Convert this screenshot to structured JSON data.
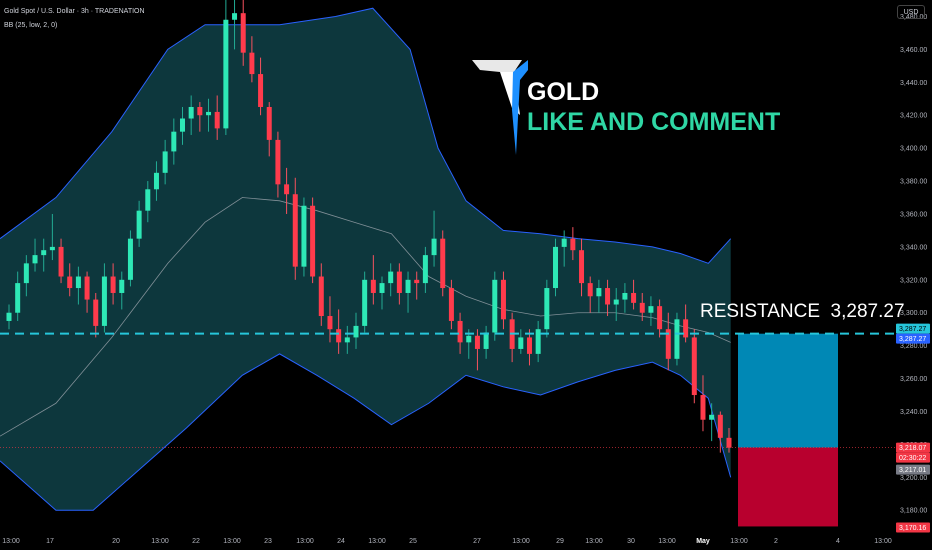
{
  "header": {
    "symbol_line": "Gold Spot / U.S. Dollar · 3h · TRADENATION",
    "indicator_line": "BB (25, low, 2, 0)"
  },
  "currency_button": "USD",
  "branding": {
    "title": "GOLD",
    "subtitle": "LIKE AND COMMENT",
    "accent_color": "#2fd7a5",
    "title_color": "#ffffff"
  },
  "annotation": {
    "text": "RESISTANCE  3,287.27",
    "line_color": "#26c6da"
  },
  "price_labels": {
    "resistance_top": "3,287.27",
    "resistance_bottom": "3,287.27",
    "current_price": "3,218.07",
    "countdown": "02:30:22",
    "gray_price": "3,217.01",
    "stop_price": "3,170.16"
  },
  "chart_data": {
    "type": "candlestick",
    "y_axis": {
      "ticks": [
        "3,180.00",
        "3,200.00",
        "3,220.00",
        "3,240.00",
        "3,260.00",
        "3,280.00",
        "3,300.00",
        "3,320.00",
        "3,340.00",
        "3,360.00",
        "3,380.00",
        "3,400.00",
        "3,420.00",
        "3,440.00",
        "3,460.00",
        "3,480.00"
      ],
      "ylim": [
        3168,
        3490
      ]
    },
    "x_axis": {
      "ticks": [
        "13:00",
        "17",
        "20",
        "13:00",
        "22",
        "13:00",
        "23",
        "13:00",
        "24",
        "13:00",
        "25",
        "27",
        "13:00",
        "29",
        "13:00",
        "30",
        "13:00",
        "May",
        "13:00",
        "2",
        "4",
        "13:00"
      ]
    },
    "candles": [
      [
        3295,
        3305,
        3290,
        3300
      ],
      [
        3300,
        3325,
        3295,
        3318
      ],
      [
        3318,
        3335,
        3310,
        3330
      ],
      [
        3330,
        3345,
        3325,
        3335
      ],
      [
        3335,
        3345,
        3325,
        3338
      ],
      [
        3338,
        3360,
        3332,
        3340
      ],
      [
        3340,
        3345,
        3318,
        3322
      ],
      [
        3322,
        3330,
        3310,
        3315
      ],
      [
        3315,
        3328,
        3305,
        3322
      ],
      [
        3322,
        3325,
        3300,
        3308
      ],
      [
        3308,
        3312,
        3285,
        3292
      ],
      [
        3292,
        3330,
        3288,
        3322
      ],
      [
        3322,
        3330,
        3305,
        3312
      ],
      [
        3312,
        3325,
        3302,
        3320
      ],
      [
        3320,
        3350,
        3316,
        3345
      ],
      [
        3345,
        3368,
        3340,
        3362
      ],
      [
        3362,
        3380,
        3355,
        3375
      ],
      [
        3375,
        3392,
        3368,
        3385
      ],
      [
        3385,
        3405,
        3378,
        3398
      ],
      [
        3398,
        3418,
        3390,
        3410
      ],
      [
        3410,
        3425,
        3402,
        3418
      ],
      [
        3418,
        3432,
        3408,
        3425
      ],
      [
        3425,
        3428,
        3410,
        3420
      ],
      [
        3420,
        3430,
        3410,
        3422
      ],
      [
        3422,
        3432,
        3405,
        3412
      ],
      [
        3412,
        3490,
        3408,
        3478
      ],
      [
        3478,
        3490,
        3460,
        3482
      ],
      [
        3482,
        3490,
        3450,
        3458
      ],
      [
        3458,
        3468,
        3440,
        3445
      ],
      [
        3445,
        3455,
        3420,
        3425
      ],
      [
        3425,
        3428,
        3395,
        3405
      ],
      [
        3405,
        3410,
        3370,
        3378
      ],
      [
        3378,
        3388,
        3360,
        3372
      ],
      [
        3372,
        3382,
        3320,
        3328
      ],
      [
        3328,
        3370,
        3322,
        3365
      ],
      [
        3365,
        3370,
        3318,
        3322
      ],
      [
        3322,
        3330,
        3292,
        3298
      ],
      [
        3298,
        3310,
        3282,
        3290
      ],
      [
        3290,
        3302,
        3275,
        3282
      ],
      [
        3282,
        3292,
        3275,
        3285
      ],
      [
        3285,
        3300,
        3278,
        3292
      ],
      [
        3292,
        3325,
        3288,
        3320
      ],
      [
        3320,
        3335,
        3305,
        3312
      ],
      [
        3312,
        3322,
        3302,
        3318
      ],
      [
        3318,
        3330,
        3310,
        3325
      ],
      [
        3325,
        3330,
        3305,
        3312
      ],
      [
        3312,
        3325,
        3300,
        3320
      ],
      [
        3320,
        3325,
        3308,
        3318
      ],
      [
        3318,
        3340,
        3312,
        3335
      ],
      [
        3335,
        3362,
        3328,
        3345
      ],
      [
        3345,
        3350,
        3310,
        3315
      ],
      [
        3315,
        3320,
        3290,
        3295
      ],
      [
        3295,
        3300,
        3275,
        3282
      ],
      [
        3282,
        3290,
        3272,
        3286
      ],
      [
        3286,
        3290,
        3265,
        3278
      ],
      [
        3278,
        3292,
        3272,
        3288
      ],
      [
        3288,
        3325,
        3283,
        3320
      ],
      [
        3320,
        3325,
        3290,
        3296
      ],
      [
        3296,
        3300,
        3270,
        3278
      ],
      [
        3278,
        3290,
        3275,
        3285
      ],
      [
        3285,
        3290,
        3268,
        3275
      ],
      [
        3275,
        3295,
        3270,
        3290
      ],
      [
        3290,
        3320,
        3285,
        3315
      ],
      [
        3315,
        3345,
        3310,
        3340
      ],
      [
        3340,
        3350,
        3328,
        3345
      ],
      [
        3345,
        3352,
        3332,
        3338
      ],
      [
        3338,
        3345,
        3310,
        3318
      ],
      [
        3318,
        3322,
        3300,
        3310
      ],
      [
        3310,
        3320,
        3300,
        3315
      ],
      [
        3315,
        3320,
        3298,
        3305
      ],
      [
        3305,
        3315,
        3295,
        3308
      ],
      [
        3308,
        3318,
        3300,
        3312
      ],
      [
        3312,
        3320,
        3302,
        3306
      ],
      [
        3306,
        3312,
        3295,
        3300
      ],
      [
        3300,
        3310,
        3292,
        3304
      ],
      [
        3304,
        3308,
        3285,
        3290
      ],
      [
        3290,
        3300,
        3265,
        3272
      ],
      [
        3272,
        3300,
        3268,
        3296
      ],
      [
        3296,
        3305,
        3282,
        3285
      ],
      [
        3285,
        3290,
        3245,
        3250
      ],
      [
        3250,
        3262,
        3228,
        3235
      ],
      [
        3235,
        3245,
        3222,
        3238
      ],
      [
        3238,
        3240,
        3215,
        3224
      ],
      [
        3224,
        3230,
        3215,
        3218
      ]
    ],
    "bollinger_upper": [
      [
        0,
        3345
      ],
      [
        0.06,
        3370
      ],
      [
        0.12,
        3410
      ],
      [
        0.18,
        3460
      ],
      [
        0.22,
        3475
      ],
      [
        0.3,
        3475
      ],
      [
        0.36,
        3480
      ],
      [
        0.4,
        3485
      ],
      [
        0.44,
        3460
      ],
      [
        0.47,
        3400
      ],
      [
        0.5,
        3368
      ],
      [
        0.54,
        3350
      ],
      [
        0.58,
        3348
      ],
      [
        0.62,
        3345
      ],
      [
        0.66,
        3343
      ],
      [
        0.7,
        3340
      ],
      [
        0.73,
        3336
      ],
      [
        0.76,
        3330
      ],
      [
        0.784,
        3345
      ]
    ],
    "bollinger_lower": [
      [
        0,
        3210
      ],
      [
        0.06,
        3180
      ],
      [
        0.1,
        3180
      ],
      [
        0.14,
        3200
      ],
      [
        0.2,
        3230
      ],
      [
        0.26,
        3262
      ],
      [
        0.3,
        3275
      ],
      [
        0.34,
        3262
      ],
      [
        0.38,
        3248
      ],
      [
        0.42,
        3232
      ],
      [
        0.46,
        3245
      ],
      [
        0.5,
        3262
      ],
      [
        0.54,
        3255
      ],
      [
        0.58,
        3250
      ],
      [
        0.62,
        3258
      ],
      [
        0.66,
        3265
      ],
      [
        0.7,
        3270
      ],
      [
        0.73,
        3262
      ],
      [
        0.76,
        3248
      ],
      [
        0.784,
        3200
      ]
    ],
    "bollinger_mid": [
      [
        0,
        3225
      ],
      [
        0.06,
        3245
      ],
      [
        0.12,
        3285
      ],
      [
        0.18,
        3330
      ],
      [
        0.22,
        3355
      ],
      [
        0.26,
        3370
      ],
      [
        0.3,
        3368
      ],
      [
        0.34,
        3362
      ],
      [
        0.38,
        3355
      ],
      [
        0.42,
        3348
      ],
      [
        0.46,
        3322
      ],
      [
        0.5,
        3310
      ],
      [
        0.54,
        3302
      ],
      [
        0.58,
        3298
      ],
      [
        0.62,
        3300
      ],
      [
        0.66,
        3300
      ],
      [
        0.7,
        3297
      ],
      [
        0.73,
        3292
      ],
      [
        0.76,
        3288
      ],
      [
        0.784,
        3282
      ]
    ],
    "resistance": 3287.27,
    "current_price": 3218.07,
    "target_zone": [
      3218.07,
      3287.27
    ],
    "stop_zone": [
      3170.16,
      3218.07
    ]
  }
}
